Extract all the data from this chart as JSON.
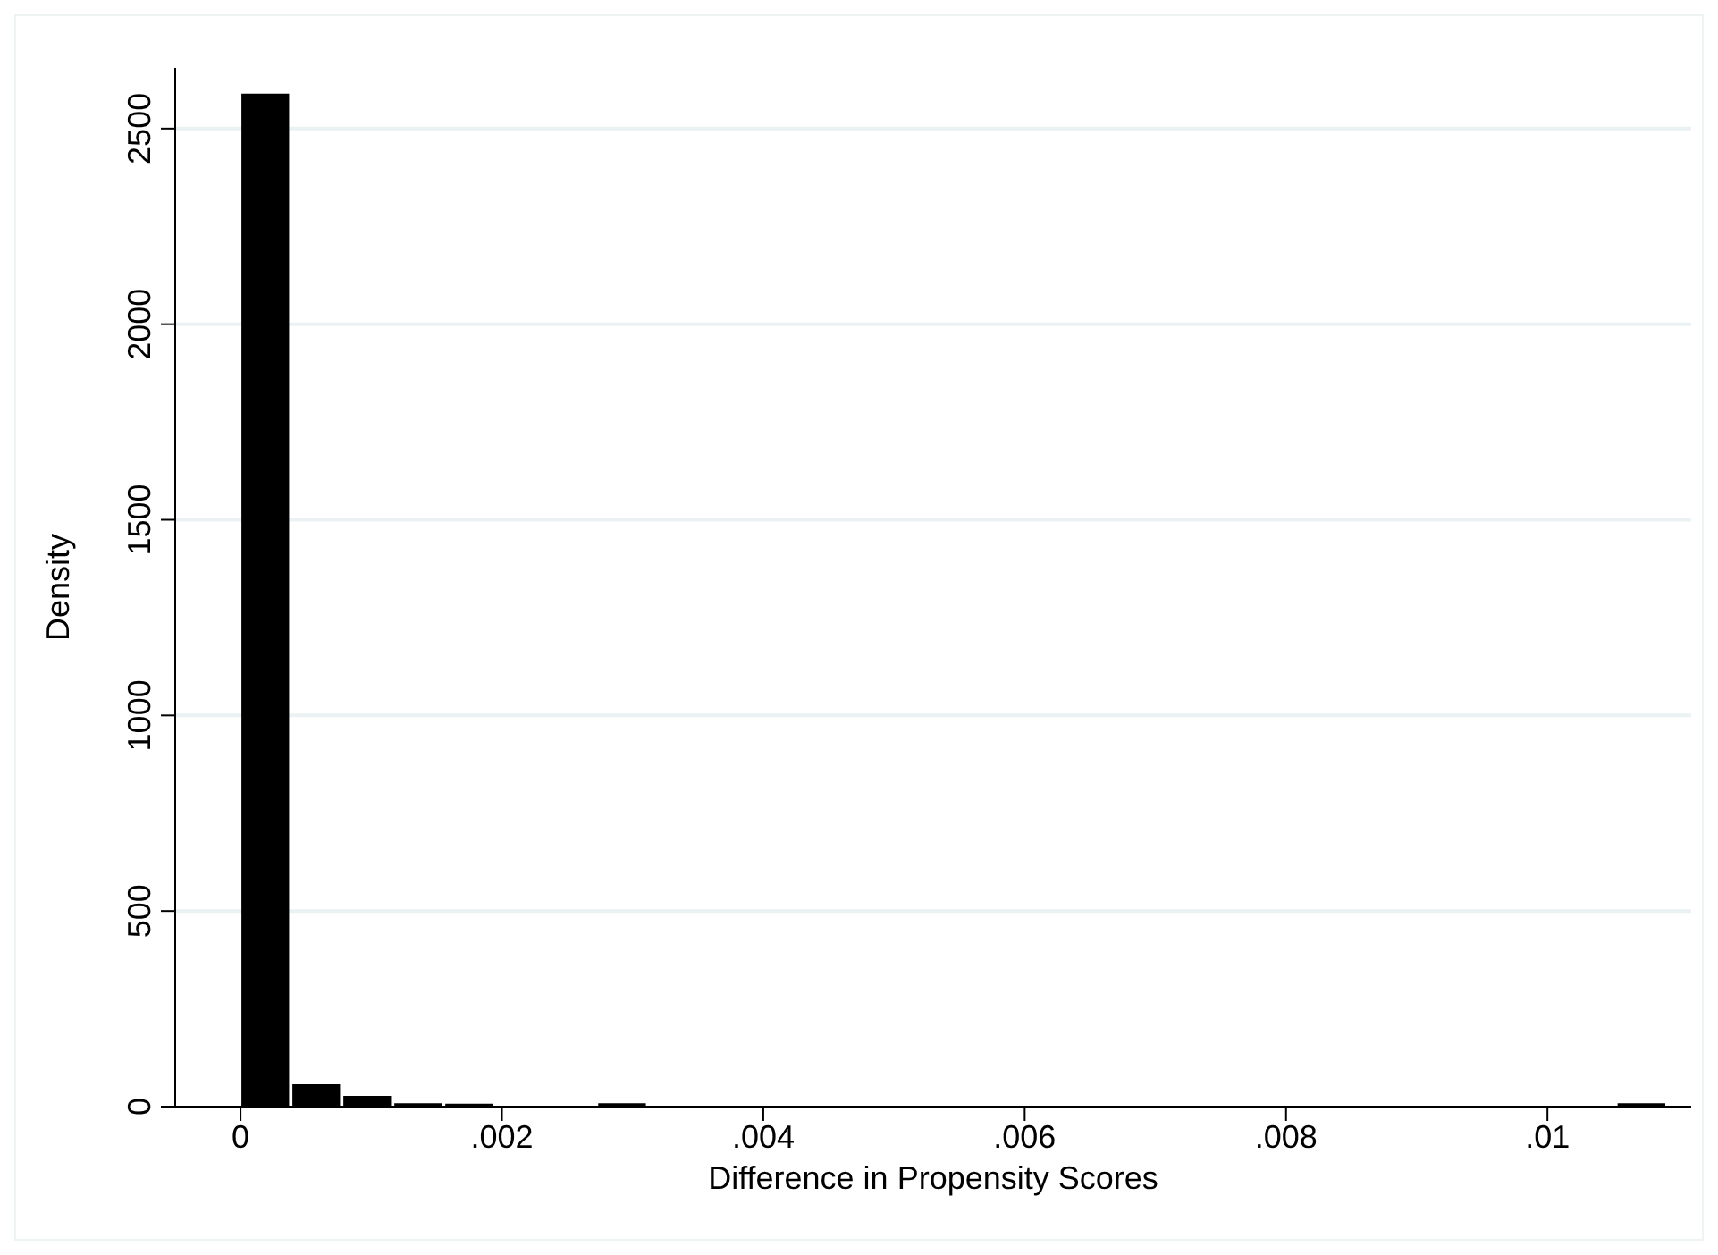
{
  "chart_data": {
    "type": "histogram",
    "xlabel": "Difference in Propensity Scores",
    "ylabel": "Density",
    "bins": [
      0,
      0.00039,
      0.00078,
      0.00117,
      0.00156,
      0.00195,
      0.00234,
      0.00273,
      0.00312,
      0.00351,
      0.0039,
      0.00429,
      0.00468,
      0.00507,
      0.00546,
      0.00585,
      0.00624,
      0.00663,
      0.00702,
      0.00741,
      0.0078,
      0.00819,
      0.00858,
      0.00897,
      0.00936,
      0.00975,
      0.01014,
      0.01053,
      0.01092
    ],
    "values": [
      2587,
      55,
      25,
      6,
      5,
      0,
      0,
      6,
      0,
      0,
      0,
      0,
      0,
      0,
      0,
      0,
      0,
      0,
      0,
      0,
      0,
      0,
      0,
      0,
      0,
      0,
      0,
      6
    ],
    "color": "#000000",
    "xlim": [
      -0.0005,
      0.0111
    ],
    "xticks": [
      {
        "value": 0,
        "label": "0"
      },
      {
        "value": 0.002,
        "label": ".002"
      },
      {
        "value": 0.004,
        "label": ".004"
      },
      {
        "value": 0.006,
        "label": ".006"
      },
      {
        "value": 0.008,
        "label": ".008"
      },
      {
        "value": 0.01,
        "label": ".01"
      }
    ],
    "ylim": [
      0,
      2655
    ],
    "yticks": [
      0,
      500,
      1000,
      1500,
      2000,
      2500
    ],
    "grid": "y"
  }
}
